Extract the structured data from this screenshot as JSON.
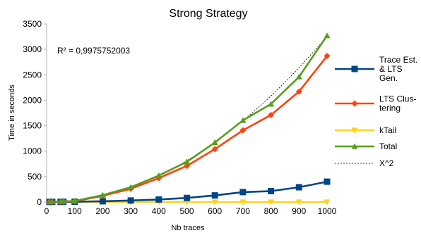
{
  "chart_data": {
    "type": "line",
    "title": "Strong Strategy",
    "xlabel": "Nb traces",
    "ylabel": "Time in seconds",
    "xlim": [
      0,
      1000
    ],
    "ylim": [
      0,
      3500
    ],
    "xticks": [
      0,
      100,
      200,
      300,
      400,
      500,
      600,
      700,
      800,
      900,
      1000
    ],
    "yticks": [
      0,
      500,
      1000,
      1500,
      2000,
      2500,
      3000,
      3500
    ],
    "grid": false,
    "legend_position": "right",
    "annotation": "R² = 0,9975752003",
    "x": [
      10,
      20,
      50,
      60,
      100,
      200,
      300,
      400,
      500,
      600,
      700,
      800,
      900,
      1000
    ],
    "series": [
      {
        "name": "Trace Est. & LTS Gen.",
        "legend_lines": [
          "Trace Est.",
          "& LTS",
          "Gen."
        ],
        "color": "#004586",
        "marker": "square",
        "values": [
          2,
          3,
          4,
          4,
          6,
          15,
          30,
          50,
          80,
          130,
          195,
          215,
          290,
          400
        ]
      },
      {
        "name": "LTS Clustering",
        "legend_lines": [
          "LTS Clus-",
          "tering"
        ],
        "color": "#ff420e",
        "marker": "diamond",
        "values": [
          2,
          4,
          6,
          8,
          15,
          120,
          260,
          470,
          710,
          1040,
          1410,
          1710,
          2170,
          2870
        ]
      },
      {
        "name": "kTail",
        "legend_lines": [
          "kTail"
        ],
        "color": "#ffd320",
        "marker": "triangle-down",
        "values": [
          0,
          0,
          0,
          0,
          0,
          0,
          0,
          0,
          0,
          0,
          0,
          0,
          0,
          0
        ]
      },
      {
        "name": "Total",
        "legend_lines": [
          "Total"
        ],
        "color": "#579d1c",
        "marker": "triangle-up",
        "values": [
          4,
          7,
          10,
          12,
          21,
          135,
          290,
          520,
          790,
          1170,
          1605,
          1925,
          2460,
          3270
        ]
      }
    ],
    "trendline": {
      "name": "X^2",
      "legend_lines": [
        "X^2"
      ],
      "color": "#000000",
      "style": "dotted",
      "coefficient": 0.00326
    }
  }
}
